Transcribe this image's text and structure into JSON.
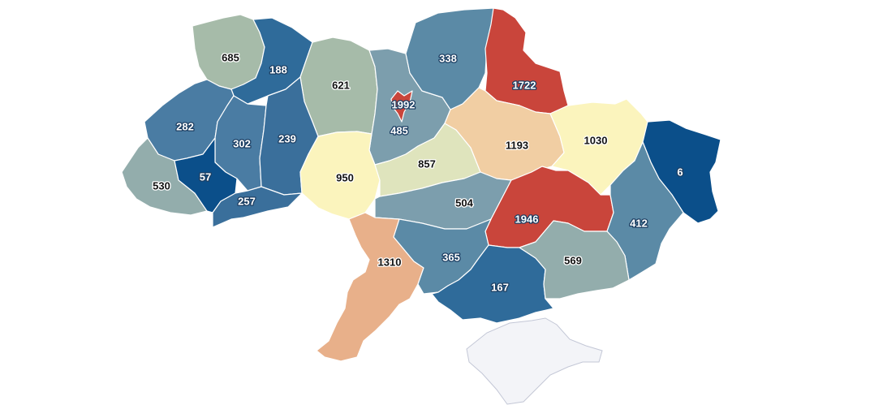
{
  "palette": {
    "lowest": "#0b4f8a",
    "low": "#2f6b9a",
    "low_mid": "#5b8aa6",
    "mid_blue": "#7c9ead",
    "mid_green": "#a6bba9",
    "pale_yellow_green": "#dfe4bd",
    "pale_yellow": "#fbf4bd",
    "peach": "#f1cea3",
    "orange": "#e8b08a",
    "red": "#c9453b",
    "water": "#ffffff",
    "crimea": "#f3f4f8"
  },
  "regions": [
    {
      "id": "volyn",
      "value": "685",
      "color": "#a6bba9"
    },
    {
      "id": "rivne",
      "value": "188",
      "color": "#2f6b9a"
    },
    {
      "id": "zhytomyr",
      "value": "621",
      "color": "#a6bba9"
    },
    {
      "id": "kyiv-oblast",
      "value": "485",
      "color": "#7c9ead"
    },
    {
      "id": "kyiv-city",
      "value": "1992",
      "color": "#c9453b"
    },
    {
      "id": "chernihiv",
      "value": "338",
      "color": "#5b8aa6"
    },
    {
      "id": "sumy",
      "value": "1722",
      "color": "#c9453b"
    },
    {
      "id": "lviv",
      "value": "282",
      "color": "#4a7ca3"
    },
    {
      "id": "ternopil",
      "value": "302",
      "color": "#4a7ca3"
    },
    {
      "id": "khmelnytskyi",
      "value": "239",
      "color": "#3a6f9b"
    },
    {
      "id": "zakarpattia",
      "value": "530",
      "color": "#93adac"
    },
    {
      "id": "ivano-frankivsk",
      "value": "57",
      "color": "#0b4f8a"
    },
    {
      "id": "chernivtsi",
      "value": "257",
      "color": "#3a6f9b"
    },
    {
      "id": "vinnytsia",
      "value": "950",
      "color": "#fbf4bd"
    },
    {
      "id": "cherkasy",
      "value": "857",
      "color": "#dfe4bd"
    },
    {
      "id": "poltava",
      "value": "1193",
      "color": "#f1cea3"
    },
    {
      "id": "kharkiv",
      "value": "1030",
      "color": "#fbf4bd"
    },
    {
      "id": "luhansk",
      "value": "6",
      "color": "#0b4f8a"
    },
    {
      "id": "kirovohrad",
      "value": "504",
      "color": "#7c9ead"
    },
    {
      "id": "dnipropetrovsk",
      "value": "1946",
      "color": "#c9453b"
    },
    {
      "id": "donetsk",
      "value": "412",
      "color": "#5b8aa6"
    },
    {
      "id": "odesa",
      "value": "1310",
      "color": "#e8b08a"
    },
    {
      "id": "mykolaiv",
      "value": "365",
      "color": "#5b8aa6"
    },
    {
      "id": "kherson",
      "value": "167",
      "color": "#2f6b9a"
    },
    {
      "id": "zaporizhzhia",
      "value": "569",
      "color": "#93adac"
    }
  ]
}
